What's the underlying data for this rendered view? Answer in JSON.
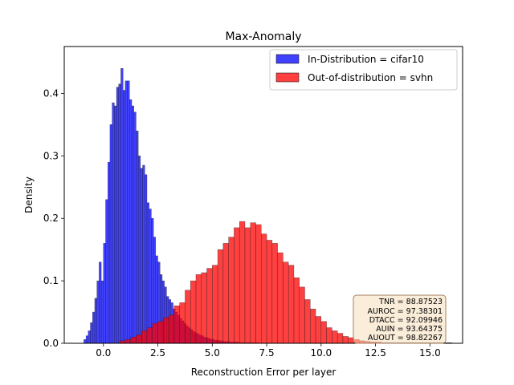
{
  "chart_data": {
    "type": "histogram",
    "title": "Max-Anomaly",
    "xlabel": "Reconstruction Error per layer",
    "ylabel": "Density",
    "xlim": [
      -1.8,
      16.5
    ],
    "ylim": [
      0,
      0.475
    ],
    "xticks": [
      0.0,
      2.5,
      5.0,
      7.5,
      10.0,
      12.5,
      15.0
    ],
    "xtick_labels": [
      "0.0",
      "2.5",
      "5.0",
      "7.5",
      "10.0",
      "12.5",
      "15.0"
    ],
    "yticks": [
      0.0,
      0.1,
      0.2,
      0.3,
      0.4
    ],
    "ytick_labels": [
      "0.0",
      "0.1",
      "0.2",
      "0.3",
      "0.4"
    ],
    "grid": false,
    "legend_position": "upper right",
    "series": [
      {
        "name": "In-Distribution = cifar10",
        "color": "#0000ff",
        "alpha": 0.75,
        "bins": [
          [
            -0.9,
            0.006
          ],
          [
            -0.8,
            0.012
          ],
          [
            -0.7,
            0.02
          ],
          [
            -0.6,
            0.033
          ],
          [
            -0.5,
            0.05
          ],
          [
            -0.4,
            0.072
          ],
          [
            -0.3,
            0.1
          ],
          [
            -0.2,
            0.13
          ],
          [
            -0.1,
            0.1
          ],
          [
            0.0,
            0.16
          ],
          [
            0.1,
            0.23
          ],
          [
            0.2,
            0.29
          ],
          [
            0.3,
            0.35
          ],
          [
            0.4,
            0.385
          ],
          [
            0.5,
            0.38
          ],
          [
            0.6,
            0.41
          ],
          [
            0.7,
            0.415
          ],
          [
            0.8,
            0.44
          ],
          [
            0.9,
            0.405
          ],
          [
            1.0,
            0.42
          ],
          [
            1.1,
            0.42
          ],
          [
            1.2,
            0.39
          ],
          [
            1.3,
            0.38
          ],
          [
            1.4,
            0.37
          ],
          [
            1.5,
            0.34
          ],
          [
            1.6,
            0.3
          ],
          [
            1.7,
            0.28
          ],
          [
            1.8,
            0.285
          ],
          [
            1.9,
            0.27
          ],
          [
            2.0,
            0.225
          ],
          [
            2.1,
            0.215
          ],
          [
            2.2,
            0.2
          ],
          [
            2.3,
            0.17
          ],
          [
            2.4,
            0.14
          ],
          [
            2.5,
            0.13
          ],
          [
            2.6,
            0.11
          ],
          [
            2.7,
            0.1
          ],
          [
            2.8,
            0.09
          ],
          [
            2.9,
            0.075
          ],
          [
            3.0,
            0.07
          ],
          [
            3.1,
            0.065
          ],
          [
            3.2,
            0.055
          ],
          [
            3.3,
            0.05
          ],
          [
            3.4,
            0.045
          ],
          [
            3.5,
            0.04
          ],
          [
            3.6,
            0.036
          ],
          [
            3.7,
            0.032
          ],
          [
            3.8,
            0.028
          ],
          [
            3.9,
            0.025
          ],
          [
            4.0,
            0.022
          ],
          [
            4.1,
            0.019
          ],
          [
            4.2,
            0.017
          ],
          [
            4.3,
            0.015
          ],
          [
            4.4,
            0.013
          ],
          [
            4.5,
            0.012
          ],
          [
            4.6,
            0.01
          ],
          [
            4.7,
            0.009
          ],
          [
            4.8,
            0.008
          ],
          [
            4.9,
            0.007
          ],
          [
            5.0,
            0.006
          ],
          [
            5.1,
            0.005
          ],
          [
            5.2,
            0.005
          ],
          [
            5.3,
            0.004
          ],
          [
            5.4,
            0.004
          ],
          [
            5.5,
            0.003
          ],
          [
            5.6,
            0.003
          ],
          [
            5.7,
            0.003
          ],
          [
            5.8,
            0.002
          ],
          [
            5.9,
            0.002
          ],
          [
            6.0,
            0.002
          ],
          [
            6.1,
            0.002
          ],
          [
            6.2,
            0.001
          ],
          [
            6.3,
            0.001
          ],
          [
            6.4,
            0.001
          ],
          [
            6.5,
            0.001
          ],
          [
            6.6,
            0.001
          ],
          [
            6.7,
            0.001
          ],
          [
            6.8,
            0.001
          ],
          [
            6.9,
            0.001
          ],
          [
            7.0,
            0.001
          ]
        ]
      },
      {
        "name": "Out-of-distribution = svhn",
        "color": "#ff0000",
        "alpha": 0.75,
        "bins": [
          [
            0.75,
            0.004
          ],
          [
            1.0,
            0.006
          ],
          [
            1.25,
            0.01
          ],
          [
            1.5,
            0.013
          ],
          [
            1.75,
            0.02
          ],
          [
            2.0,
            0.025
          ],
          [
            2.25,
            0.032
          ],
          [
            2.5,
            0.035
          ],
          [
            2.75,
            0.041
          ],
          [
            3.0,
            0.045
          ],
          [
            3.25,
            0.06
          ],
          [
            3.5,
            0.065
          ],
          [
            3.75,
            0.085
          ],
          [
            4.0,
            0.1
          ],
          [
            4.25,
            0.11
          ],
          [
            4.5,
            0.113
          ],
          [
            4.75,
            0.12
          ],
          [
            5.0,
            0.125
          ],
          [
            5.25,
            0.15
          ],
          [
            5.5,
            0.16
          ],
          [
            5.75,
            0.17
          ],
          [
            6.0,
            0.185
          ],
          [
            6.25,
            0.195
          ],
          [
            6.5,
            0.185
          ],
          [
            6.75,
            0.193
          ],
          [
            7.0,
            0.19
          ],
          [
            7.25,
            0.175
          ],
          [
            7.5,
            0.165
          ],
          [
            7.75,
            0.16
          ],
          [
            8.0,
            0.145
          ],
          [
            8.25,
            0.13
          ],
          [
            8.5,
            0.125
          ],
          [
            8.75,
            0.105
          ],
          [
            9.0,
            0.09
          ],
          [
            9.25,
            0.07
          ],
          [
            9.5,
            0.055
          ],
          [
            9.75,
            0.043
          ],
          [
            10.0,
            0.035
          ],
          [
            10.25,
            0.025
          ],
          [
            10.5,
            0.02
          ],
          [
            10.75,
            0.016
          ],
          [
            11.0,
            0.011
          ],
          [
            11.25,
            0.009
          ],
          [
            11.5,
            0.006
          ],
          [
            11.75,
            0.004
          ],
          [
            12.0,
            0.003
          ],
          [
            12.25,
            0.002
          ],
          [
            12.5,
            0.002
          ],
          [
            12.75,
            0.001
          ],
          [
            13.0,
            0.001
          ],
          [
            13.25,
            0.001
          ],
          [
            13.5,
            0.001
          ],
          [
            13.75,
            0.001
          ],
          [
            14.0,
            0.001
          ],
          [
            14.25,
            0.001
          ],
          [
            14.5,
            0.001
          ],
          [
            14.75,
            0.001
          ],
          [
            15.0,
            0.001
          ],
          [
            15.25,
            0.001
          ],
          [
            15.5,
            0.001
          ],
          [
            15.75,
            0.001
          ]
        ]
      }
    ],
    "metrics_box": {
      "lines": [
        "TNR = 88.87523",
        "AUROC = 97.38301",
        "DTACC = 92.09946",
        "AUIN = 93.64375",
        "AUOUT = 98.82267"
      ],
      "background": "#f5dcb4",
      "border": "#a08060"
    }
  }
}
